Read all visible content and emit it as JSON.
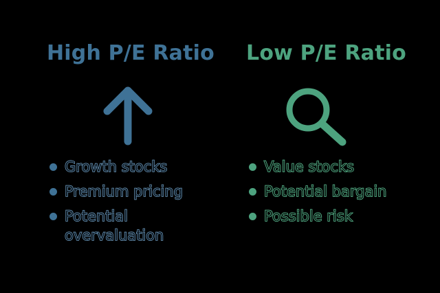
{
  "high": {
    "title": "High P/E Ratio",
    "icon": "arrow-up-icon",
    "color": "#3f7296",
    "bullets": [
      "Growth stocks",
      "Premium pricing",
      "Potential overvaluation"
    ]
  },
  "low": {
    "title": "Low P/E Ratio",
    "icon": "magnifying-glass-icon",
    "color": "#4da37f",
    "bullets": [
      "Value stocks",
      "Potential bargain",
      "Possible risk"
    ]
  }
}
